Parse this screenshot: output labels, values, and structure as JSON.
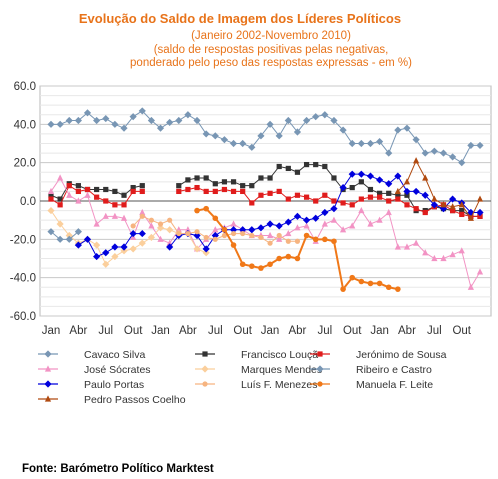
{
  "chart_data": {
    "type": "line",
    "title": "Evolução do Saldo  de Imagem dos Líderes Políticos",
    "subtitle": [
      "(Janeiro 2002-Novembro 2010)",
      "(saldo de respostas positivas pelas negativas,",
      "ponderado pelo peso das respostas expressas - em %)"
    ],
    "source": "Fonte: Barómetro Político Marktest",
    "ylim": [
      -60,
      60
    ],
    "yticks": [
      "60.0",
      "40.0",
      "20.0",
      "0.0",
      "-20.0",
      "-40.0",
      "-60.0"
    ],
    "xticks": [
      "Jan",
      "Abr",
      "Jul",
      "Out",
      "Jan",
      "Abr",
      "Jul",
      "Out",
      "Jan",
      "Abr",
      "Jul",
      "Out",
      "Jan",
      "Abr",
      "Jul",
      "Out"
    ],
    "grid": true,
    "legend_position": "bottom",
    "series": [
      {
        "name": "Cavaco Silva",
        "color": "#7896b4",
        "marker": "diamond",
        "x": [
          0,
          1,
          2,
          3,
          4,
          5,
          6,
          7,
          8,
          9,
          10,
          11,
          12,
          13,
          14,
          15,
          16,
          17,
          18,
          19,
          20,
          21,
          22,
          23,
          24,
          25,
          26,
          27,
          28,
          29,
          30,
          31,
          32,
          33,
          34,
          35,
          36,
          37,
          38,
          39,
          40,
          41,
          42,
          43,
          44,
          45,
          46,
          47
        ],
        "y": [
          40,
          40,
          42,
          42,
          46,
          42,
          43,
          40,
          38,
          44,
          47,
          42,
          38,
          41,
          42,
          45,
          42,
          35,
          34,
          32,
          30,
          30,
          28,
          34,
          40,
          34,
          42,
          36,
          42,
          44,
          45,
          42,
          37,
          30,
          30,
          30,
          31,
          25,
          37,
          38,
          32,
          25,
          26,
          25,
          23,
          20,
          29,
          29
        ]
      },
      {
        "name": "Francisco Louçã",
        "color": "#333333",
        "marker": "square",
        "x": [
          0,
          1,
          2,
          3,
          4,
          5,
          6,
          7,
          8,
          9,
          10,
          14,
          15,
          16,
          17,
          18,
          19,
          20,
          21,
          22,
          23,
          24,
          25,
          26,
          27,
          28,
          29,
          30,
          31,
          32,
          33,
          34,
          35,
          36,
          37,
          38,
          39,
          40,
          41,
          42,
          43,
          44,
          45,
          46,
          47
        ],
        "y": [
          3,
          1,
          9,
          8,
          6,
          6,
          6,
          5,
          3,
          7,
          8,
          8,
          11,
          12,
          12,
          9,
          10,
          10,
          8,
          8,
          12,
          12,
          18,
          17,
          15,
          19,
          19,
          18,
          12,
          6,
          7,
          10,
          6,
          4,
          4,
          3,
          3,
          -5,
          -5,
          -3,
          -4,
          -5,
          -5,
          -8,
          -8
        ]
      },
      {
        "name": "Jerónimo de Sousa",
        "color": "#e01c1c",
        "marker": "square",
        "x": [
          0,
          1,
          2,
          3,
          4,
          5,
          6,
          7,
          8,
          9,
          10,
          14,
          15,
          16,
          17,
          18,
          19,
          20,
          21,
          22,
          23,
          24,
          25,
          26,
          27,
          28,
          29,
          30,
          31,
          32,
          33,
          34,
          35,
          36,
          37,
          38,
          39,
          40,
          41,
          42,
          43,
          44,
          45,
          46,
          47
        ],
        "y": [
          1,
          -2,
          8,
          5,
          6,
          2,
          0,
          -2,
          -2,
          5,
          5,
          5,
          6,
          7,
          5,
          5,
          6,
          5,
          5,
          -1,
          3,
          4,
          5,
          1,
          3,
          2,
          0,
          3,
          0,
          -1,
          -2,
          1,
          2,
          2,
          0,
          1,
          -2,
          -4,
          -6,
          -3,
          -2,
          -5,
          -7,
          -8,
          -8
        ]
      },
      {
        "name": "José Sócrates",
        "color": "#f293c4",
        "marker": "triangle",
        "x": [
          0,
          1,
          2,
          3,
          4,
          5,
          6,
          7,
          8,
          9,
          10,
          11,
          12,
          13,
          14,
          15,
          16,
          17,
          18,
          19,
          20,
          21,
          22,
          23,
          24,
          25,
          26,
          27,
          28,
          29,
          30,
          31,
          32,
          33,
          34,
          35,
          36,
          37,
          38,
          39,
          40,
          41,
          42,
          43,
          44,
          45,
          46,
          47
        ],
        "y": [
          5,
          12,
          3,
          0,
          3,
          -12,
          -8,
          -8,
          -9,
          -19,
          -6,
          -13,
          -20,
          -22,
          -15,
          -15,
          -25,
          -20,
          -15,
          -14,
          -12,
          -15,
          -18,
          -18,
          -18,
          -20,
          -17,
          -14,
          -13,
          -21,
          -12,
          -10,
          -15,
          -13,
          -5,
          -12,
          -10,
          -6,
          -24,
          -24,
          -22,
          -27,
          -30,
          -30,
          -28,
          -26,
          -45,
          -37
        ]
      },
      {
        "name": "Marques Mendes",
        "color": "#fbcf9c",
        "marker": "diamond",
        "x": [
          0,
          1,
          2,
          3,
          4,
          5,
          6,
          7,
          8,
          9,
          10,
          11,
          12,
          13,
          14,
          15,
          16,
          17
        ],
        "y": [
          -5,
          -12,
          -18,
          -22,
          -20,
          -23,
          -33,
          -29,
          -26,
          -25,
          -22,
          -19,
          -14,
          -15,
          -17,
          -17,
          -25,
          -27
        ]
      },
      {
        "name": "Ribeiro e Castro",
        "color": "#7896b4",
        "marker": "diamond",
        "x": [
          0,
          1,
          2,
          3
        ],
        "y": [
          -16,
          -20,
          -20,
          -16
        ]
      },
      {
        "name": "Paulo Portas",
        "color": "#0000dd",
        "marker": "diamond",
        "x": [
          3,
          4,
          5,
          6,
          7,
          8,
          9,
          10,
          13,
          14,
          15,
          16,
          17,
          18,
          19,
          20,
          21,
          22,
          23,
          24,
          25,
          26,
          27,
          28,
          29,
          30,
          31,
          32,
          33,
          34,
          35,
          36,
          37,
          38,
          39,
          40,
          41,
          42,
          43,
          44,
          45,
          46,
          47
        ],
        "y": [
          -23,
          -20,
          -29,
          -27,
          -24,
          -24,
          -17,
          -17,
          -24,
          -18,
          -17,
          -18,
          -25,
          -18,
          -15,
          -15,
          -15,
          -15,
          -14,
          -12,
          -13,
          -11,
          -8,
          -10,
          -9,
          -6,
          -4,
          7,
          14,
          14,
          13,
          11,
          9,
          13,
          5,
          5,
          3,
          -2,
          -4,
          1,
          -1,
          -6,
          -6
        ]
      },
      {
        "name": "Luís F. Menezes",
        "color": "#f6b480",
        "marker": "circle",
        "x": [
          9,
          10,
          11,
          12,
          13,
          14,
          15,
          16,
          17,
          18,
          19,
          20,
          21,
          22,
          23,
          24,
          25,
          26,
          27
        ],
        "y": [
          -13,
          -8,
          -10,
          -12,
          -10,
          -17,
          -17,
          -16,
          -19,
          -20,
          -18,
          -17,
          -17,
          -18,
          -19,
          -22,
          -18,
          -21,
          -21
        ]
      },
      {
        "name": "Manuela F. Leite",
        "color": "#f07818",
        "marker": "circle",
        "x": [
          16,
          17,
          18,
          19,
          20,
          21,
          22,
          23,
          24,
          25,
          26,
          27,
          28,
          29,
          30,
          31,
          32,
          33,
          34,
          35,
          36,
          37,
          38
        ],
        "y": [
          -5,
          -4,
          -9,
          -15,
          -23,
          -33,
          -34,
          -35,
          -33,
          -30,
          -29,
          -30,
          -18,
          -20,
          -20,
          -21,
          -46,
          -40,
          -42,
          -43,
          -43,
          -45,
          -46
        ]
      },
      {
        "name": "Pedro Passos Coelho",
        "color": "#b04a10",
        "marker": "triangle",
        "x": [
          38,
          39,
          40,
          41,
          42,
          43,
          44,
          45,
          46,
          47
        ],
        "y": [
          5,
          10,
          21,
          12,
          1,
          -2,
          -3,
          -2,
          -9,
          1
        ]
      }
    ]
  }
}
